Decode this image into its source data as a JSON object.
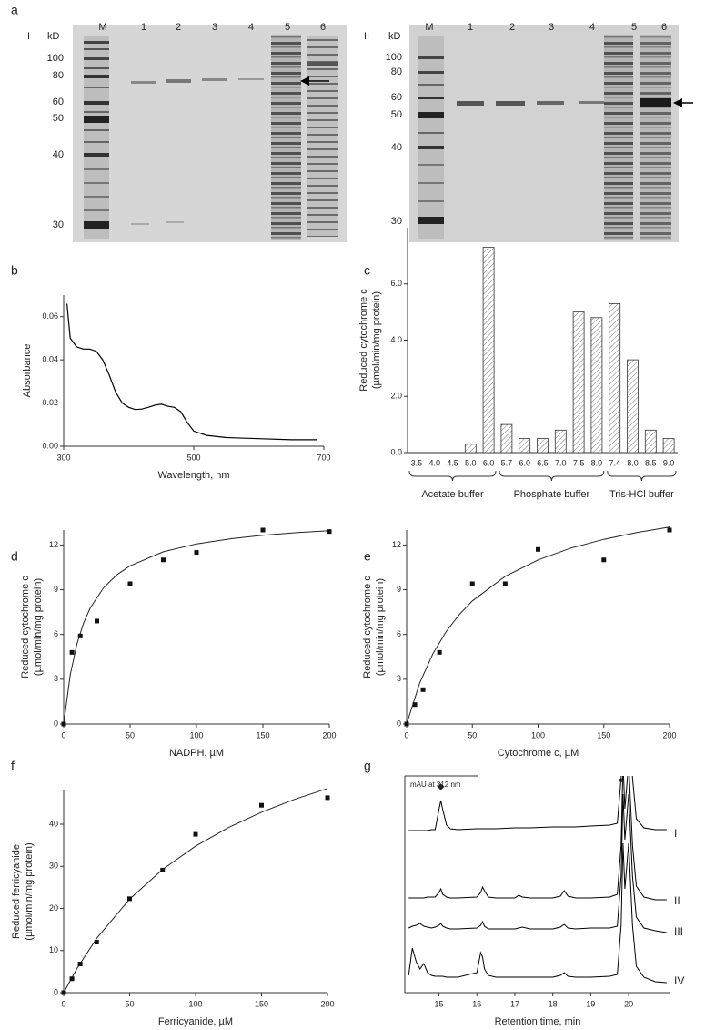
{
  "panel_labels": [
    "a",
    "b",
    "c",
    "d",
    "e",
    "f",
    "g"
  ],
  "gels": [
    {
      "label": "I",
      "unit": "kD",
      "lanes": [
        "M",
        "1",
        "2",
        "3",
        "4",
        "5",
        "6"
      ],
      "markers": [
        "100",
        "80",
        "60",
        "50",
        "40",
        "30"
      ]
    },
    {
      "label": "II",
      "unit": "kD",
      "lanes": [
        "M",
        "1",
        "2",
        "3",
        "4",
        "5",
        "6"
      ],
      "markers": [
        "100",
        "80",
        "60",
        "50",
        "40",
        "30"
      ]
    }
  ],
  "chart_data": [
    {
      "type": "line",
      "color": "#000000",
      "x": [
        305,
        310,
        320,
        330,
        340,
        350,
        360,
        370,
        380,
        390,
        400,
        410,
        420,
        430,
        440,
        450,
        460,
        470,
        480,
        490,
        500,
        520,
        550,
        600,
        650,
        690
      ],
      "values": [
        0.066,
        0.05,
        0.046,
        0.045,
        0.045,
        0.044,
        0.04,
        0.033,
        0.025,
        0.02,
        0.018,
        0.017,
        0.0172,
        0.018,
        0.019,
        0.0195,
        0.0185,
        0.018,
        0.016,
        0.011,
        0.007,
        0.005,
        0.004,
        0.0035,
        0.003,
        0.003
      ],
      "xlim": [
        300,
        700
      ],
      "xticks": [
        300,
        500,
        700
      ],
      "ylim": [
        0,
        0.07
      ],
      "yticks": [
        {
          "value": 0,
          "label": "0.00"
        },
        {
          "value": 0.02,
          "label": "0.02"
        },
        {
          "value": 0.04,
          "label": "0.04"
        },
        {
          "value": 0.06,
          "label": "0.06"
        }
      ],
      "xlabel": "Wavelength, nm",
      "ylabel": [
        "Absorbance"
      ]
    },
    {
      "type": "bar",
      "color": "#ffffff",
      "hatch": true,
      "groups": [
        {
          "label": "Acetate buffer",
          "categories": [
            "3.5",
            "4.0",
            "4.5",
            "5.0",
            "6.0"
          ],
          "values": [
            0,
            0,
            0,
            0.3,
            7.3
          ]
        },
        {
          "label": "Phosphate buffer",
          "categories": [
            "5.7",
            "6.0",
            "6.5",
            "7.0",
            "7.5",
            "8.0"
          ],
          "values": [
            1.0,
            0.5,
            0.5,
            0.8,
            5.0,
            4.8
          ]
        },
        {
          "label": "Tris-HCl buffer",
          "categories": [
            "7.4",
            "8.0",
            "8.5",
            "9.0"
          ],
          "values": [
            5.3,
            3.3,
            0.8,
            0.5
          ]
        }
      ],
      "ylim": [
        0,
        8
      ],
      "yticks": [
        {
          "value": 0,
          "label": "0.0"
        },
        {
          "value": 2,
          "label": "2.0"
        },
        {
          "value": 4,
          "label": "4.0"
        },
        {
          "value": 6,
          "label": "6.0"
        }
      ],
      "ylabel": [
        "Reduced cytochrome c",
        "(µmol/min/mg protein)"
      ]
    },
    {
      "type": "scatter",
      "color": "#111111",
      "x": [
        0,
        6.25,
        12.5,
        25,
        50,
        75,
        100,
        150,
        200
      ],
      "values": [
        0,
        4.8,
        5.9,
        6.9,
        9.4,
        11.0,
        11.5,
        13.0,
        12.9
      ],
      "fit": {
        "x": [
          0,
          5,
          10,
          15,
          20,
          30,
          40,
          50,
          75,
          100,
          125,
          150,
          175,
          200
        ],
        "values": [
          0,
          3.33,
          5.38,
          6.77,
          7.78,
          9.13,
          10.0,
          10.6,
          11.54,
          12.07,
          12.41,
          12.65,
          12.82,
          12.96
        ]
      },
      "xlim": [
        0,
        200
      ],
      "xticks": [
        0,
        50,
        100,
        150,
        200
      ],
      "ylim": [
        0,
        13
      ],
      "yticks": [
        0,
        3,
        6,
        9,
        12
      ],
      "xlabel": "NADPH, µM",
      "ylabel": [
        "Reduced cytochrome c",
        "(µmol/min/mg protein)"
      ]
    },
    {
      "type": "scatter",
      "color": "#111111",
      "x": [
        0,
        6.25,
        12.5,
        25,
        50,
        75,
        100,
        150,
        200
      ],
      "values": [
        0,
        1.3,
        2.3,
        4.8,
        9.4,
        9.4,
        11.7,
        11.0,
        13.0
      ],
      "fit": {
        "x": [
          0,
          10,
          20,
          30,
          40,
          50,
          75,
          100,
          125,
          150,
          175,
          200
        ],
        "values": [
          0,
          2.75,
          4.71,
          6.19,
          7.33,
          8.25,
          9.9,
          11.0,
          11.79,
          12.38,
          12.83,
          13.2
        ]
      },
      "xlim": [
        0,
        200
      ],
      "xticks": [
        0,
        50,
        100,
        150,
        200
      ],
      "ylim": [
        0,
        13
      ],
      "yticks": [
        0,
        3,
        6,
        9,
        12
      ],
      "xlabel": "Cytochrome c, µM",
      "ylabel": [
        "Reduced cytochrome c",
        "(µmol/min/mg protein)"
      ]
    },
    {
      "type": "scatter",
      "color": "#111111",
      "x": [
        0,
        6.25,
        12.5,
        25,
        50,
        75,
        100,
        150,
        200
      ],
      "values": [
        0,
        3.3,
        6.8,
        12,
        22.3,
        29.1,
        37.6,
        44.5,
        46.3
      ],
      "fit": {
        "x": [
          0,
          10,
          25,
          50,
          75,
          100,
          125,
          150,
          175,
          200
        ],
        "values": [
          0,
          5.71,
          12.9,
          22.22,
          29.27,
          34.78,
          39.22,
          42.86,
          45.9,
          48.48
        ]
      },
      "xlim": [
        0,
        200
      ],
      "xticks": [
        0,
        50,
        100,
        150,
        200
      ],
      "ylim": [
        0,
        48
      ],
      "yticks": [
        0,
        10,
        20,
        30,
        40
      ],
      "xlabel": "Ferricyanide, µM",
      "ylabel": [
        "Reduced ferricyanide",
        "(µmol/min/mg protein)"
      ]
    },
    {
      "type": "chromatogram",
      "x": [
        14.2,
        14.3,
        14.4,
        14.5,
        14.6,
        14.7,
        14.8,
        14.9,
        15.0,
        15.05,
        15.1,
        15.2,
        15.3,
        15.5,
        16.0,
        16.1,
        16.15,
        16.2,
        16.3,
        16.5,
        17.0,
        17.1,
        17.2,
        17.4,
        18.0,
        18.2,
        18.3,
        18.4,
        18.6,
        19.0,
        19.5,
        19.7,
        19.8,
        19.85,
        19.9,
        20.0,
        20.1,
        20.2,
        20.4,
        20.7,
        21.0
      ],
      "series": [
        {
          "name": "I",
          "color": "#000000",
          "values": [
            2,
            2,
            2,
            2,
            2,
            2,
            3,
            3,
            25,
            35,
            25,
            8,
            4,
            3,
            4,
            4,
            4,
            4,
            4,
            4,
            5,
            5,
            5,
            5,
            6,
            6,
            6,
            6,
            6,
            7,
            8,
            10,
            60,
            150,
            100,
            150,
            60,
            15,
            5,
            3,
            3
          ]
        },
        {
          "name": "II",
          "color": "#000000",
          "values": [
            2,
            2,
            2,
            2,
            2,
            3,
            3,
            3,
            8,
            12,
            6,
            3,
            2,
            2,
            3,
            8,
            14,
            10,
            3,
            2,
            2,
            5,
            3,
            2,
            2,
            4,
            10,
            4,
            2,
            2,
            3,
            6,
            60,
            150,
            100,
            150,
            60,
            15,
            3,
            0,
            0
          ]
        },
        {
          "name": "III",
          "color": "#000000",
          "values": [
            3,
            5,
            6,
            8,
            5,
            4,
            3,
            4,
            6,
            8,
            5,
            3,
            2,
            2,
            3,
            6,
            10,
            5,
            2,
            2,
            2,
            3,
            4,
            2,
            2,
            4,
            7,
            3,
            2,
            3,
            3,
            5,
            60,
            150,
            100,
            150,
            60,
            15,
            3,
            0,
            -2
          ]
        },
        {
          "name": "IV",
          "color": "#000000",
          "values": [
            5,
            35,
            20,
            12,
            18,
            8,
            5,
            4,
            4,
            4,
            4,
            3,
            3,
            3,
            8,
            30,
            25,
            12,
            5,
            3,
            3,
            3,
            3,
            3,
            3,
            5,
            8,
            4,
            3,
            3,
            4,
            6,
            60,
            150,
            100,
            150,
            60,
            15,
            3,
            -2,
            -3
          ]
        }
      ],
      "peak_markers": [
        {
          "label": "◆",
          "x": 15.05
        },
        {
          "label": "●",
          "x": 19.8
        }
      ],
      "xlim": [
        14.1,
        21.1
      ],
      "xticks": [
        15,
        16,
        17,
        18,
        19,
        20
      ],
      "xlabel": "Retention time, min",
      "ylabel": "mAU at 312 nm"
    }
  ]
}
